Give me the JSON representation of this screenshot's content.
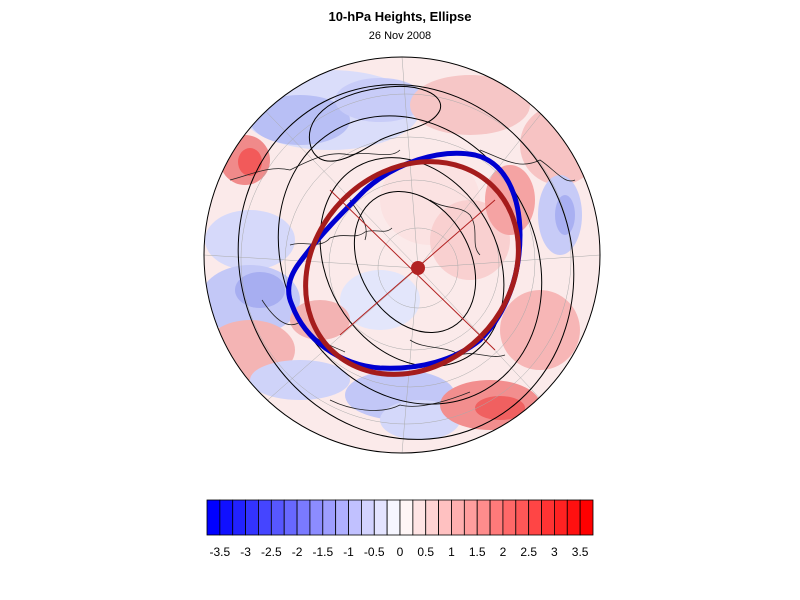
{
  "figure": {
    "title": "10-hPa Heights, Ellipse",
    "subtitle": "26 Nov 2008"
  },
  "map": {
    "projection": "north-polar-stereographic",
    "field": "standardized height anomaly",
    "contours": "geopotential height",
    "ellipse_color": "#a51c1c",
    "vortex_edge_color": "#0000d0",
    "center_marker_color": "#b22222"
  },
  "colorbar": {
    "min": -3.75,
    "max": 3.75,
    "step": 0.25,
    "tick_labels": [
      "-3.5",
      "-3",
      "-2.5",
      "-2",
      "-1.5",
      "-1",
      "-0.5",
      "0",
      "0.5",
      "1",
      "1.5",
      "2",
      "2.5",
      "3",
      "3.5"
    ],
    "negative_color": "#0000ff",
    "positive_color": "#ff0000",
    "neutral_color": "#ffffff"
  }
}
